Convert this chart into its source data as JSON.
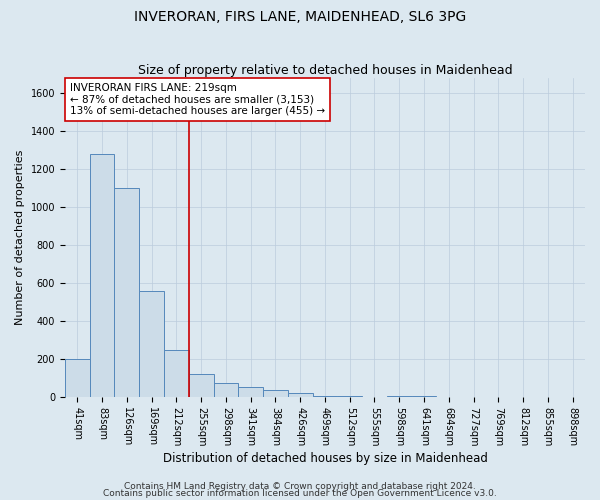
{
  "title": "INVERORAN, FIRS LANE, MAIDENHEAD, SL6 3PG",
  "subtitle": "Size of property relative to detached houses in Maidenhead",
  "xlabel": "Distribution of detached houses by size in Maidenhead",
  "ylabel": "Number of detached properties",
  "footer1": "Contains HM Land Registry data © Crown copyright and database right 2024.",
  "footer2": "Contains public sector information licensed under the Open Government Licence v3.0.",
  "categories": [
    "41sqm",
    "83sqm",
    "126sqm",
    "169sqm",
    "212sqm",
    "255sqm",
    "298sqm",
    "341sqm",
    "384sqm",
    "426sqm",
    "469sqm",
    "512sqm",
    "555sqm",
    "598sqm",
    "641sqm",
    "684sqm",
    "727sqm",
    "769sqm",
    "812sqm",
    "855sqm",
    "898sqm"
  ],
  "values": [
    200,
    1280,
    1100,
    560,
    250,
    120,
    75,
    55,
    40,
    20,
    5,
    5,
    0,
    5,
    5,
    0,
    0,
    0,
    0,
    0,
    0
  ],
  "bar_color": "#ccdce8",
  "bar_edgecolor": "#5588bb",
  "bar_linewidth": 0.7,
  "vline_x": 4.5,
  "vline_color": "#cc0000",
  "vline_linewidth": 1.2,
  "annotation_text": "INVERORAN FIRS LANE: 219sqm\n← 87% of detached houses are smaller (3,153)\n13% of semi-detached houses are larger (455) →",
  "annotation_box_edgecolor": "#cc0000",
  "annotation_box_facecolor": "#ffffff",
  "annotation_fontsize": 7.5,
  "ylim": [
    0,
    1680
  ],
  "yticks": [
    0,
    200,
    400,
    600,
    800,
    1000,
    1200,
    1400,
    1600
  ],
  "grid_color": "#bbccdd",
  "bg_color": "#dce8f0",
  "title_fontsize": 10,
  "subtitle_fontsize": 9,
  "xlabel_fontsize": 8.5,
  "ylabel_fontsize": 8,
  "tick_fontsize": 7
}
